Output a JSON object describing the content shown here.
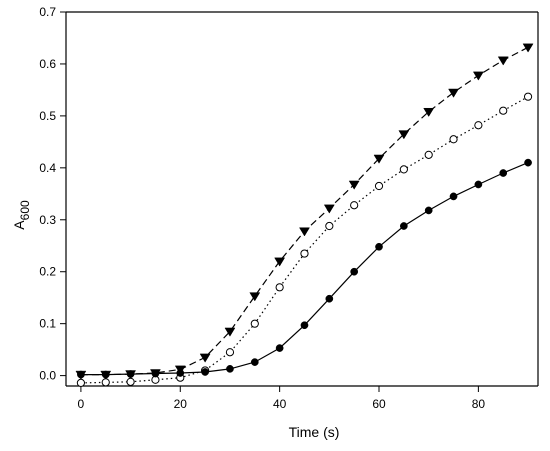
{
  "chart_data": {
    "type": "line",
    "title": "",
    "xlabel": "Time (s)",
    "ylabel_main": "A",
    "ylabel_sub": "600",
    "xlim": [
      -3,
      92
    ],
    "ylim": [
      -0.02,
      0.7
    ],
    "x_ticks": [
      0,
      20,
      40,
      60,
      80
    ],
    "x_tick_labels": [
      "0",
      "20",
      "40",
      "60",
      "80"
    ],
    "y_ticks": [
      0.0,
      0.1,
      0.2,
      0.3,
      0.4,
      0.5,
      0.6,
      0.7
    ],
    "y_tick_labels": [
      "0.0",
      "0.1",
      "0.2",
      "0.3",
      "0.4",
      "0.5",
      "0.6",
      "0.7"
    ],
    "grid": false,
    "legend": "none",
    "x": [
      0,
      5,
      10,
      15,
      20,
      25,
      30,
      35,
      40,
      45,
      50,
      55,
      60,
      65,
      70,
      75,
      80,
      85,
      90
    ],
    "series": [
      {
        "marker": "triangle-down-filled",
        "line_style": "dashed",
        "color": "#000000",
        "values": [
          0.002,
          0.002,
          0.003,
          0.005,
          0.012,
          0.035,
          0.085,
          0.153,
          0.22,
          0.278,
          0.322,
          0.368,
          0.418,
          0.465,
          0.508,
          0.545,
          0.578,
          0.607,
          0.632
        ]
      },
      {
        "marker": "circle-open",
        "line_style": "dotted",
        "color": "#000000",
        "values": [
          -0.014,
          -0.013,
          -0.012,
          -0.008,
          -0.004,
          0.01,
          0.045,
          0.1,
          0.17,
          0.235,
          0.288,
          0.328,
          0.365,
          0.397,
          0.425,
          0.455,
          0.482,
          0.51,
          0.537
        ]
      },
      {
        "marker": "circle-filled",
        "line_style": "solid",
        "color": "#000000",
        "values": [
          0.002,
          0.002,
          0.003,
          0.004,
          0.005,
          0.007,
          0.013,
          0.026,
          0.053,
          0.097,
          0.148,
          0.2,
          0.248,
          0.288,
          0.318,
          0.345,
          0.368,
          0.39,
          0.41
        ]
      }
    ]
  }
}
